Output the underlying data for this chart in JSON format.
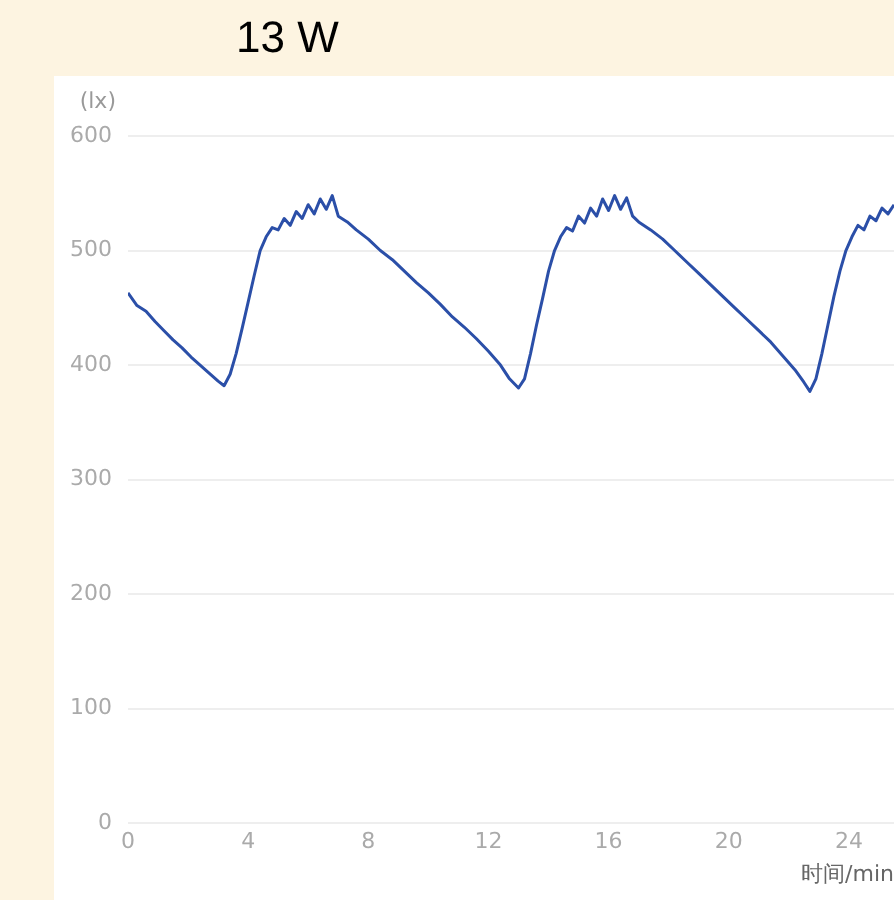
{
  "chart_data": {
    "type": "line",
    "title": "13 W",
    "ylabel": "(lx)",
    "xlabel": "时间/min",
    "xlim": [
      0,
      25.5
    ],
    "xticks": [
      0,
      4,
      8,
      12,
      16,
      20,
      24
    ],
    "ylim": [
      0,
      600
    ],
    "yticks": [
      0,
      100,
      200,
      300,
      400,
      500,
      600
    ],
    "grid": "y",
    "legend": false,
    "marker": "none",
    "line_style": "solid",
    "series": [
      {
        "color": "#2b4fa8",
        "x": [
          0,
          0.3,
          0.6,
          0.9,
          1.2,
          1.5,
          1.8,
          2.1,
          2.4,
          2.7,
          3.0,
          3.2,
          3.4,
          3.6,
          3.8,
          4.0,
          4.2,
          4.4,
          4.6,
          4.8,
          5.0,
          5.2,
          5.4,
          5.6,
          5.8,
          6.0,
          6.2,
          6.4,
          6.6,
          6.8,
          7.0,
          7.3,
          7.6,
          8.0,
          8.4,
          8.8,
          9.2,
          9.6,
          10.0,
          10.4,
          10.8,
          11.2,
          11.6,
          12.0,
          12.4,
          12.7,
          13.0,
          13.2,
          13.4,
          13.6,
          13.8,
          14.0,
          14.2,
          14.4,
          14.6,
          14.8,
          15.0,
          15.2,
          15.4,
          15.6,
          15.8,
          16.0,
          16.2,
          16.4,
          16.6,
          16.8,
          17.0,
          17.4,
          17.8,
          18.2,
          18.6,
          19.0,
          19.4,
          19.8,
          20.2,
          20.6,
          21.0,
          21.4,
          21.8,
          22.2,
          22.5,
          22.7,
          22.9,
          23.1,
          23.3,
          23.5,
          23.7,
          23.9,
          24.1,
          24.3,
          24.5,
          24.7,
          24.9,
          25.1,
          25.3,
          25.5
        ],
        "values": [
          463,
          452,
          447,
          438,
          430,
          422,
          415,
          407,
          400,
          393,
          386,
          382,
          392,
          410,
          432,
          455,
          478,
          500,
          512,
          520,
          518,
          528,
          522,
          534,
          528,
          540,
          532,
          545,
          536,
          548,
          530,
          525,
          518,
          510,
          500,
          492,
          482,
          472,
          463,
          453,
          442,
          433,
          423,
          412,
          400,
          388,
          380,
          388,
          410,
          435,
          458,
          482,
          500,
          512,
          520,
          517,
          530,
          524,
          537,
          530,
          545,
          535,
          548,
          536,
          546,
          530,
          525,
          518,
          510,
          500,
          490,
          480,
          470,
          460,
          450,
          440,
          430,
          420,
          408,
          396,
          385,
          377,
          388,
          410,
          435,
          460,
          482,
          500,
          512,
          522,
          518,
          530,
          526,
          537,
          532,
          540
        ]
      }
    ]
  }
}
